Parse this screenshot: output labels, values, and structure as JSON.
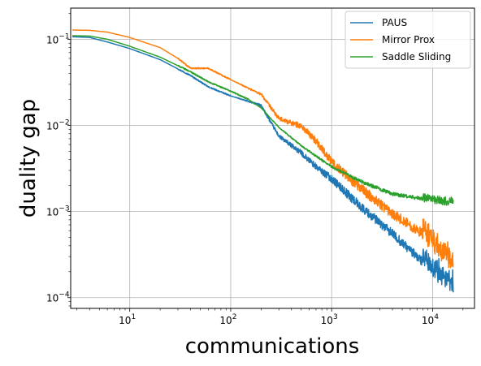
{
  "chart_data": {
    "type": "line",
    "title": "",
    "xlabel": "communications",
    "ylabel": "duality gap",
    "xscale": "log",
    "yscale": "log",
    "xlim": [
      2.6,
      26000
    ],
    "ylim": [
      7.5e-05,
      0.23
    ],
    "grid": true,
    "legend_position": "top-right",
    "x_ticks": [
      {
        "value": 10,
        "label": "10",
        "sup": "1"
      },
      {
        "value": 100,
        "label": "10",
        "sup": "2"
      },
      {
        "value": 1000,
        "label": "10",
        "sup": "3"
      },
      {
        "value": 10000,
        "label": "10",
        "sup": "4"
      }
    ],
    "y_ticks": [
      {
        "value": 0.1,
        "label": "10",
        "sup": "−1"
      },
      {
        "value": 0.01,
        "label": "10",
        "sup": "−2"
      },
      {
        "value": 0.001,
        "label": "10",
        "sup": "−3"
      },
      {
        "value": 0.0001,
        "label": "10",
        "sup": "−4"
      }
    ],
    "series": [
      {
        "name": "PAUS",
        "color": "#1f77b4",
        "noise": 0.9,
        "noise_start": 100,
        "points": [
          [
            2.7,
            0.107
          ],
          [
            4,
            0.105
          ],
          [
            6,
            0.093
          ],
          [
            10,
            0.078
          ],
          [
            20,
            0.058
          ],
          [
            40,
            0.038
          ],
          [
            60,
            0.028
          ],
          [
            100,
            0.022
          ],
          [
            150,
            0.019
          ],
          [
            200,
            0.017
          ],
          [
            300,
            0.0075
          ],
          [
            500,
            0.0048
          ],
          [
            700,
            0.0033
          ],
          [
            1000,
            0.0024
          ],
          [
            2000,
            0.0011
          ],
          [
            4000,
            0.00055
          ],
          [
            8000,
            0.00026
          ],
          [
            16000,
            0.000135
          ]
        ]
      },
      {
        "name": "Mirror Prox",
        "color": "#ff7f0e",
        "noise": 1.0,
        "noise_start": 100,
        "points": [
          [
            2.7,
            0.128
          ],
          [
            4,
            0.127
          ],
          [
            6,
            0.121
          ],
          [
            10,
            0.105
          ],
          [
            20,
            0.08
          ],
          [
            30,
            0.06
          ],
          [
            40,
            0.046
          ],
          [
            60,
            0.046
          ],
          [
            100,
            0.034
          ],
          [
            150,
            0.027
          ],
          [
            200,
            0.023
          ],
          [
            300,
            0.012
          ],
          [
            500,
            0.0098
          ],
          [
            700,
            0.0066
          ],
          [
            1000,
            0.0038
          ],
          [
            2000,
            0.0018
          ],
          [
            4000,
            0.00095
          ],
          [
            8000,
            0.00055
          ],
          [
            16000,
            0.00024
          ]
        ]
      },
      {
        "name": "Saddle Sliding",
        "color": "#2ca02c",
        "noise": 0.35,
        "noise_start": 150,
        "points": [
          [
            2.7,
            0.11
          ],
          [
            4,
            0.109
          ],
          [
            6,
            0.1
          ],
          [
            10,
            0.083
          ],
          [
            20,
            0.062
          ],
          [
            40,
            0.042
          ],
          [
            60,
            0.032
          ],
          [
            100,
            0.025
          ],
          [
            150,
            0.02
          ],
          [
            200,
            0.016
          ],
          [
            300,
            0.0095
          ],
          [
            500,
            0.0058
          ],
          [
            700,
            0.0044
          ],
          [
            1000,
            0.0033
          ],
          [
            2000,
            0.0022
          ],
          [
            4000,
            0.0016
          ],
          [
            8000,
            0.0014
          ],
          [
            16000,
            0.00125
          ]
        ]
      }
    ]
  }
}
